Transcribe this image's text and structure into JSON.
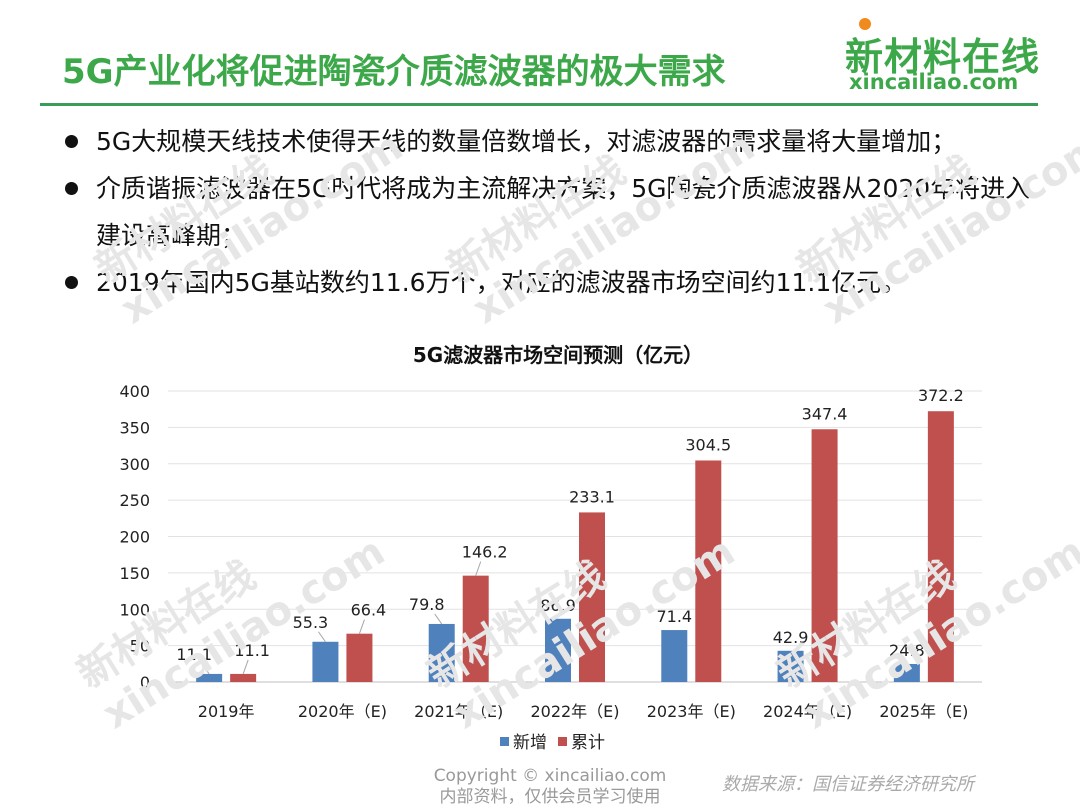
{
  "title": "5G产业化将促进陶瓷介质滤波器的极大需求",
  "logo": {
    "cn": "新材料在线",
    "en": "xincailiao.com"
  },
  "colors": {
    "brand_green": "#3da84a",
    "rule_green": "#3a9c59",
    "series_new": "#4f81bd",
    "series_cumulative": "#c0504d",
    "watermark": "#e6e6e6"
  },
  "bullets": [
    "5G大规模天线技术使得天线的数量倍数增长，对滤波器的需求量将大量增加；",
    "介质谐振滤波器在5G时代将成为主流解决方案，5G陶瓷介质滤波器从2020年将进入建设高峰期；",
    "2019年国内5G基站数约11.6万个，对应的滤波器市场空间约11.1亿元。"
  ],
  "chart_data": {
    "type": "bar",
    "title": "5G滤波器市场空间预测（亿元）",
    "categories": [
      "2019年",
      "2020年（E)",
      "2021年（E)",
      "2022年（E)",
      "2023年（E)",
      "2024年（E)",
      "2025年（E)"
    ],
    "series": [
      {
        "name": "新增",
        "values": [
          11.1,
          55.3,
          79.8,
          86.9,
          71.4,
          42.9,
          24.8
        ],
        "color": "#4f81bd"
      },
      {
        "name": "累计",
        "values": [
          11.1,
          66.4,
          146.2,
          233.1,
          304.5,
          347.4,
          372.2
        ],
        "color": "#c0504d"
      }
    ],
    "data_labels": {
      "new": [
        "11.1",
        "55.3",
        "79.8",
        "86.9",
        "71.4",
        "42.9",
        "24.8"
      ],
      "cumulative": [
        "11.1",
        "66.4",
        "146.2",
        "233.1",
        "304.5",
        "347.4",
        "372.2"
      ]
    },
    "yticks": [
      "0",
      "50",
      "100",
      "150",
      "200",
      "250",
      "300",
      "350",
      "400"
    ],
    "ylim": [
      0,
      400
    ],
    "grid": true,
    "legend": "bottom"
  },
  "watermark": {
    "cn": "新材料在线",
    "en": "xincailiao.com"
  },
  "footer": {
    "copyright": "Copyright © xincailiao.com",
    "note": "内部资料，仅供会员学习使用"
  },
  "source": "数据来源：国信证券经济研究所"
}
